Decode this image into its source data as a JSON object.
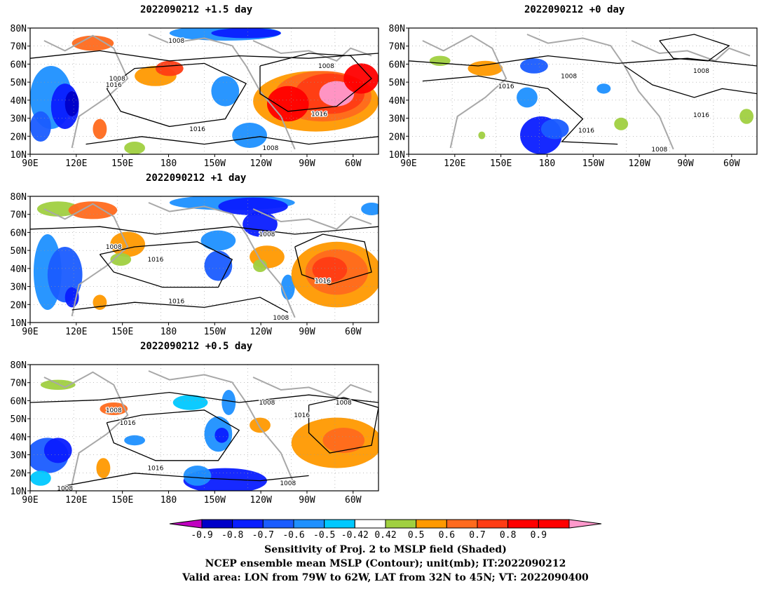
{
  "panels": [
    {
      "title": "2022090212 +1.5 day"
    },
    {
      "title": "2022090212 +0 day"
    },
    {
      "title": "2022090212 +1 day"
    },
    {
      "title": "2022090212 +0.5 day"
    }
  ],
  "lat_ticks": [
    "80N",
    "70N",
    "60N",
    "50N",
    "40N",
    "30N",
    "20N",
    "10N"
  ],
  "lon_ticks": [
    "90E",
    "120E",
    "150E",
    "180",
    "150W",
    "120W",
    "90W",
    "60W"
  ],
  "contour_labels": [
    "1008",
    "1016"
  ],
  "colorbar": {
    "labels": [
      "-0.9",
      "-0.8",
      "-0.7",
      "-0.6",
      "-0.5",
      "-0.42",
      "0.42",
      "0.5",
      "0.6",
      "0.7",
      "0.8",
      "0.9"
    ],
    "colors": [
      "#c000c0",
      "#0000c8",
      "#0a1eff",
      "#1a5cff",
      "#1e90ff",
      "#00c8ff",
      "#ffffff",
      "#a0d040",
      "#ff9900",
      "#ff6a1e",
      "#ff3c14",
      "#ff0000",
      "#ff99cc"
    ]
  },
  "caption": [
    "Sensitivity of Proj. 2 to MSLP field (Shaded)",
    "NCEP ensemble mean MSLP (Contour); unit(mb); IT:2022090212",
    "Valid area: LON from 79W to 62W, LAT from 32N to 45N; VT: 2022090400"
  ]
}
